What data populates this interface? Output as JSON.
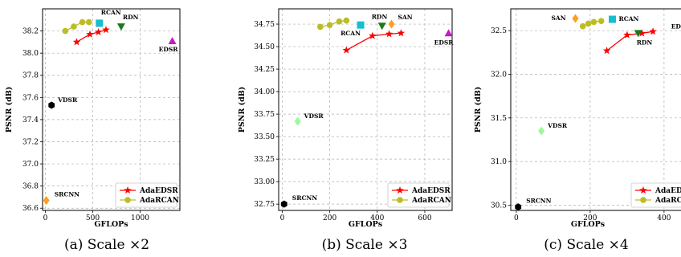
{
  "chart_data": [
    {
      "type": "scatter",
      "caption": "(a) Scale ×2",
      "xlabel": "GFLOPs",
      "ylabel": "PSNR (dB)",
      "xlim": [
        -30,
        1420
      ],
      "ylim": [
        36.58,
        38.4
      ],
      "xticks": [
        0,
        500,
        1000
      ],
      "yticks": [
        36.6,
        36.8,
        37.0,
        37.2,
        37.4,
        37.6,
        37.8,
        38.0,
        38.2
      ],
      "ytick_decimals": 1,
      "grid": true,
      "legend_position": "bottom-right",
      "curves": [
        {
          "name": "AdaEDSR",
          "color": "#ff0000",
          "marker": "star",
          "x": [
            330,
            470,
            560,
            640
          ],
          "y": [
            38.1,
            38.17,
            38.19,
            38.21
          ]
        },
        {
          "name": "AdaRCAN",
          "color": "#bcbd22",
          "marker": "circle",
          "x": [
            210,
            300,
            390,
            460
          ],
          "y": [
            38.2,
            38.24,
            38.28,
            38.28
          ]
        }
      ],
      "points": [
        {
          "label": "SRCNN",
          "x": 10,
          "y": 36.67,
          "color": "#ff9f1c",
          "marker": "diamond",
          "label_dx": 10,
          "label_dy": -5,
          "label_anchor": "start"
        },
        {
          "label": "VDSR",
          "x": 65,
          "y": 37.53,
          "color": "#000000",
          "marker": "hexagon",
          "label_dx": 8,
          "label_dy": -4,
          "label_anchor": "start"
        },
        {
          "label": "RCAN",
          "x": 570,
          "y": 38.27,
          "color": "#17becf",
          "marker": "square",
          "label_dx": 2,
          "label_dy": -11,
          "label_anchor": "start"
        },
        {
          "label": "RDN",
          "x": 800,
          "y": 38.24,
          "color": "#1a7a1a",
          "marker": "triangle_down",
          "label_dx": 2,
          "label_dy": -9,
          "label_anchor": "start"
        },
        {
          "label": "EDSR",
          "x": 1340,
          "y": 38.11,
          "color": "#c41cc4",
          "marker": "triangle_up",
          "label_dx": -5,
          "label_dy": 13,
          "label_anchor": "middle"
        }
      ]
    },
    {
      "type": "scatter",
      "caption": "(b) Scale ×3",
      "xlabel": "GFLOPs",
      "ylabel": "PSNR (dB)",
      "xlim": [
        -15,
        715
      ],
      "ylim": [
        32.68,
        34.92
      ],
      "xticks": [
        0,
        200,
        400,
        600
      ],
      "yticks": [
        32.75,
        33.0,
        33.25,
        33.5,
        33.75,
        34.0,
        34.25,
        34.5,
        34.75
      ],
      "ytick_decimals": 2,
      "grid": true,
      "legend_position": "bottom-right",
      "curves": [
        {
          "name": "AdaEDSR",
          "color": "#ff0000",
          "marker": "star",
          "x": [
            270,
            380,
            450,
            500
          ],
          "y": [
            34.46,
            34.62,
            34.64,
            34.65
          ]
        },
        {
          "name": "AdaRCAN",
          "color": "#bcbd22",
          "marker": "circle",
          "x": [
            160,
            200,
            240,
            270
          ],
          "y": [
            34.72,
            34.74,
            34.78,
            34.79
          ]
        }
      ],
      "points": [
        {
          "label": "SRCNN",
          "x": 8,
          "y": 32.75,
          "color": "#000000",
          "marker": "hexagon",
          "label_dx": 10,
          "label_dy": -5,
          "label_anchor": "start"
        },
        {
          "label": "VDSR",
          "x": 65,
          "y": 33.67,
          "color": "#98fb98",
          "marker": "diamond",
          "label_dx": 8,
          "label_dy": -4,
          "label_anchor": "start"
        },
        {
          "label": "RCAN",
          "x": 330,
          "y": 34.74,
          "color": "#17becf",
          "marker": "square",
          "label_dx": -25,
          "label_dy": 13,
          "label_anchor": "start"
        },
        {
          "label": "RDN",
          "x": 420,
          "y": 34.73,
          "color": "#1a7a1a",
          "marker": "triangle_down",
          "label_dx": -13,
          "label_dy": -9,
          "label_anchor": "start"
        },
        {
          "label": "SAN",
          "x": 460,
          "y": 34.75,
          "color": "#ff9f1c",
          "marker": "diamond",
          "label_dx": 8,
          "label_dy": -6,
          "label_anchor": "start"
        },
        {
          "label": "EDSR",
          "x": 700,
          "y": 34.65,
          "color": "#c41cc4",
          "marker": "triangle_up",
          "label_dx": -6,
          "label_dy": 14,
          "label_anchor": "middle"
        }
      ]
    },
    {
      "type": "scatter",
      "caption": "(c) Scale ×4",
      "xlabel": "GFLOPs",
      "ylabel": "PSNR (dB)",
      "xlim": [
        -15,
        485
      ],
      "ylim": [
        30.44,
        32.75
      ],
      "xticks": [
        0,
        200,
        400
      ],
      "yticks": [
        30.5,
        31.0,
        31.5,
        32.0,
        32.5
      ],
      "ytick_decimals": 1,
      "grid": true,
      "legend_position": "bottom-right",
      "curves": [
        {
          "name": "AdaEDSR",
          "color": "#ff0000",
          "marker": "star",
          "x": [
            245,
            300,
            340,
            370
          ],
          "y": [
            32.27,
            32.45,
            32.47,
            32.49
          ]
        },
        {
          "name": "AdaRCAN",
          "color": "#bcbd22",
          "marker": "circle",
          "x": [
            180,
            195,
            210,
            230
          ],
          "y": [
            32.55,
            32.58,
            32.6,
            32.61
          ]
        }
      ],
      "points": [
        {
          "label": "SRCNN",
          "x": 5,
          "y": 30.48,
          "color": "#000000",
          "marker": "hexagon",
          "label_dx": 10,
          "label_dy": -5,
          "label_anchor": "start"
        },
        {
          "label": "VDSR",
          "x": 68,
          "y": 31.35,
          "color": "#98fb98",
          "marker": "diamond",
          "label_dx": 8,
          "label_dy": -4,
          "label_anchor": "start"
        },
        {
          "label": "SAN",
          "x": 160,
          "y": 32.64,
          "color": "#ff9f1c",
          "marker": "diamond",
          "label_dx": -30,
          "label_dy": 2,
          "label_anchor": "start"
        },
        {
          "label": "RCAN",
          "x": 260,
          "y": 32.63,
          "color": "#17becf",
          "marker": "square",
          "label_dx": 8,
          "label_dy": 2,
          "label_anchor": "start"
        },
        {
          "label": "RDN",
          "x": 330,
          "y": 32.47,
          "color": "#1a7a1a",
          "marker": "triangle_down",
          "label_dx": -2,
          "label_dy": 14,
          "label_anchor": "start"
        },
        {
          "label": "EDSR",
          "x": 480,
          "y": 32.46,
          "color": "#c41cc4",
          "marker": "triangle_up",
          "label_dx": -28,
          "label_dy": -7,
          "label_anchor": "start"
        }
      ]
    }
  ]
}
